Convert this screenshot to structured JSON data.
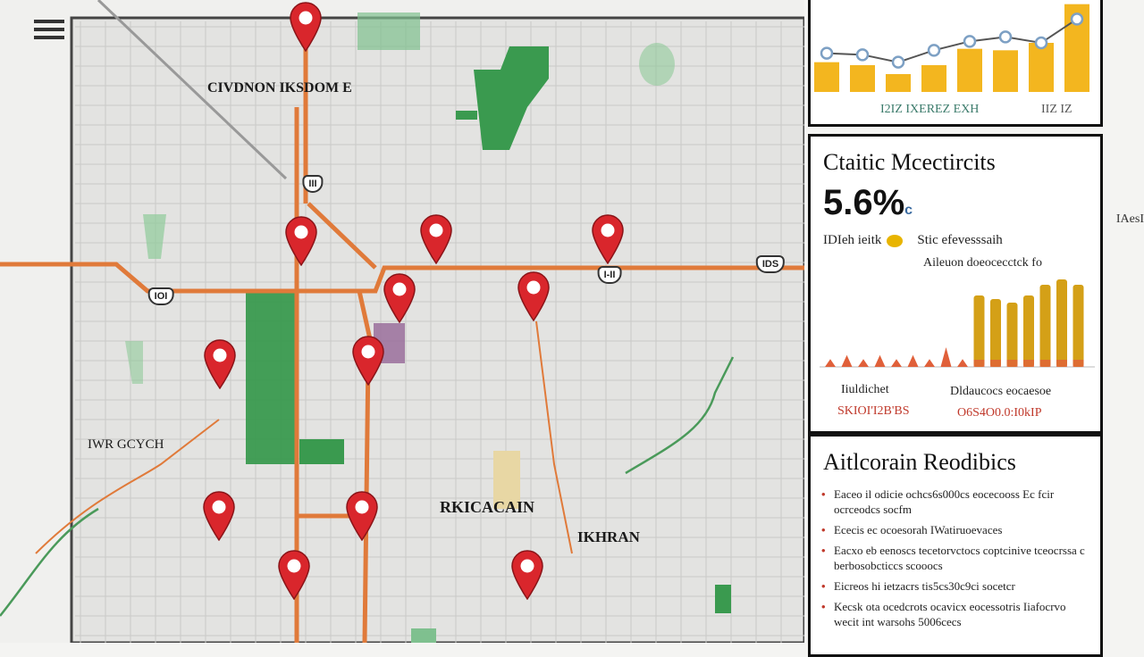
{
  "map": {
    "labels": [
      {
        "id": "top-left-district",
        "text": "CIVDNON IKSDOM E"
      },
      {
        "id": "west-town",
        "text": "IWR GCYCH"
      },
      {
        "id": "downtown",
        "text": "RKICACAIN"
      },
      {
        "id": "southeast-district",
        "text": "IKHRAN"
      }
    ],
    "highways": [
      {
        "id": "hwy-1",
        "text": "IOI"
      },
      {
        "id": "hwy-2",
        "text": "I-II"
      },
      {
        "id": "hwy-3",
        "text": "IDS"
      },
      {
        "id": "hwy-4",
        "text": "III"
      }
    ],
    "pin_color": "#d9262c",
    "road_color": "#e07a3a",
    "park_color": "#3a9a4f"
  },
  "trend_panel": {
    "x_label": "I2IZ IXEREZ EXH",
    "y_label": "IIZ IZ",
    "bar_values": [
      40,
      36,
      24,
      36,
      58,
      56,
      66,
      118
    ],
    "line_values": [
      52,
      50,
      40,
      56,
      68,
      74,
      66,
      98
    ],
    "bar_color": "#f3b61f",
    "line_color": "#7da0c4"
  },
  "stats_panel": {
    "title": "Ctaitic Mcectircits",
    "big_value": "5.6%",
    "big_unit": "c",
    "legend_left": "IDIeh ieitk",
    "legend_right": "Stic efevesssaih",
    "chart_heading": "Aileuon doeocecctck fo",
    "bar_values": [
      2,
      3,
      2,
      3,
      2,
      3,
      2,
      5,
      2,
      40,
      38,
      36,
      40,
      46,
      49,
      46
    ],
    "bar_color": "#d4a017",
    "foot_left_label": "Iiuldichet",
    "foot_left_value": "SKIOI'I2B'BS",
    "foot_right_label": "Dldaucocs eocaesoe",
    "foot_right_value": "O6S4O0.0:I0kIP"
  },
  "recs_panel": {
    "title": "Aitlcorain Reodibics",
    "items": [
      "Eaceo il odicie ochcs6s000cs eocecooss Ec fcir ocrceodcs socfm",
      "Ececis ec ocoesorah IWatiruoevaces",
      "Eacxo eb eenoscs tecetorvctocs coptcinive tceocrssa c berbosobcticcs scooocs",
      "Eicreos hi ietzacrs tis5cs30c9ci socetcr",
      "Kecsk ota ocedcrots ocavicx eocessotris Iiafocrvo wecit int warsohs 5006cecs"
    ]
  },
  "edge_label": "IAesI"
}
